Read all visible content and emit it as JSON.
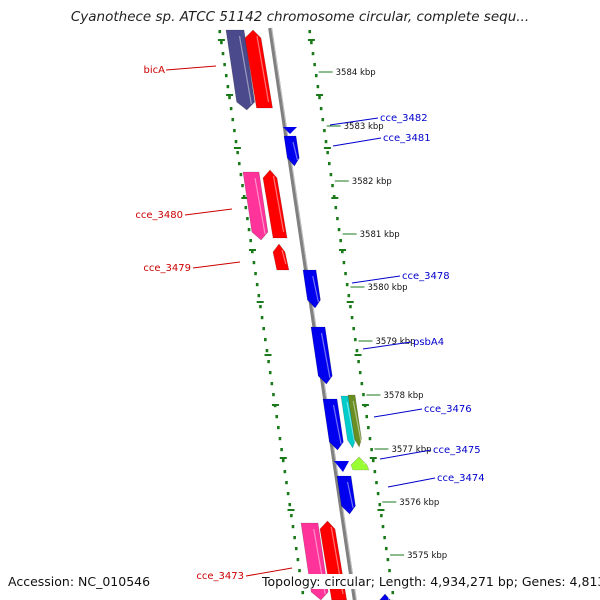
{
  "title": "Cyanothece sp. ATCC 51142 chromosome circular, complete sequ...",
  "footer": {
    "accession": "Accession: NC_010546",
    "summary": "Topology: circular; Length: 4,934,271 bp; Genes: 4,813"
  },
  "ticks": [
    "3584 kbp",
    "3583 kbp",
    "3582 kbp",
    "3581 kbp",
    "3580 kbp",
    "3579 kbp",
    "3578 kbp",
    "3577 kbp",
    "3576 kbp",
    "3575 kbp"
  ],
  "genes_forward": [
    {
      "label": "bicA",
      "color": "#cc0000"
    },
    {
      "label": "cce_3480",
      "color": "#cc0000"
    },
    {
      "label": "cce_3479",
      "color": "#cc0000"
    },
    {
      "label": "cce_3473",
      "color": "#cc0000"
    }
  ],
  "genes_reverse": [
    {
      "label": "cce_3482",
      "color": "#0000cc"
    },
    {
      "label": "cce_3481",
      "color": "#0000cc"
    },
    {
      "label": "cce_3478",
      "color": "#0000cc"
    },
    {
      "label": "psbA4",
      "color": "#0000cc"
    },
    {
      "label": "cce_3476",
      "color": "#0000cc"
    },
    {
      "label": "cce_3475",
      "color": "#0000cc"
    },
    {
      "label": "cce_3474",
      "color": "#0000cc"
    }
  ],
  "colors": {
    "backbone": "#808080",
    "dotted_guide": "#1a7a1a",
    "cds_forward": "#ff0000",
    "cds_reverse": "#0000ee",
    "orf_pink": "#ff3399",
    "orf_purple": "#4a4a8c",
    "cyan": "#00cccc",
    "olive": "#6b8e23",
    "lime": "#99ff33"
  }
}
